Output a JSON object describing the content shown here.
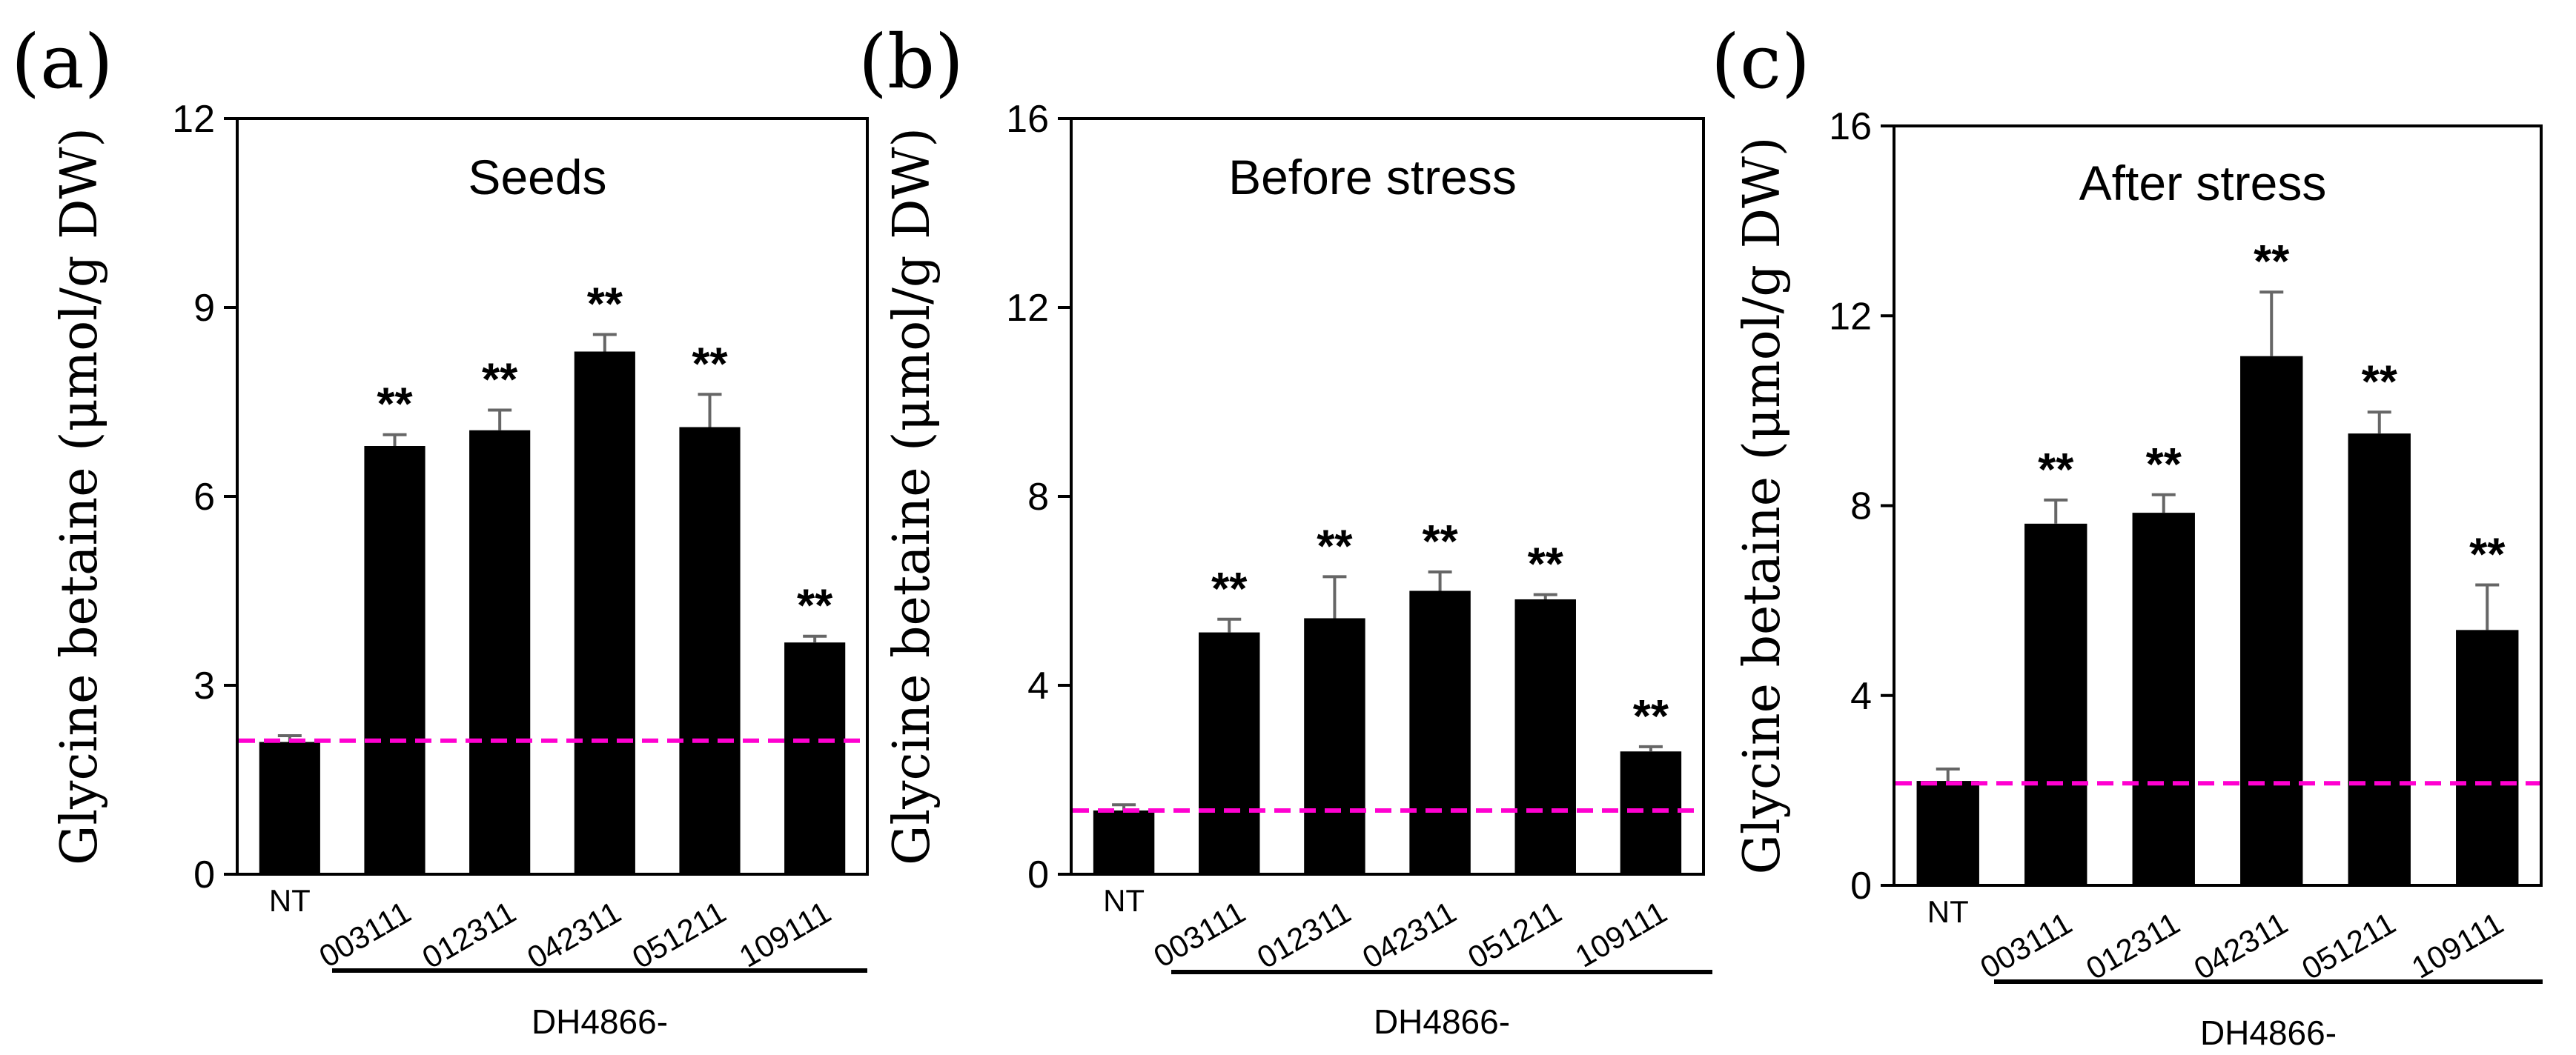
{
  "chart_data": [
    {
      "type": "bar",
      "panel_label": "(a)",
      "title": "Seeds",
      "ylabel": "Glycine betaine (μmol/g DW)",
      "ylim": [
        0,
        12
      ],
      "yticks": [
        "0",
        "3",
        "6",
        "9",
        "12"
      ],
      "categories": [
        "NT",
        "003111",
        "012311",
        "042311",
        "051211",
        "109111"
      ],
      "values": [
        2.1,
        6.8,
        7.05,
        8.3,
        7.1,
        3.68
      ],
      "errors": [
        0.1,
        0.18,
        0.32,
        0.27,
        0.52,
        0.1
      ],
      "significance": [
        "",
        "**",
        "**",
        "**",
        "**",
        "**"
      ],
      "reference_line": 2.12,
      "group_label": "DH4866-"
    },
    {
      "type": "bar",
      "panel_label": "(b)",
      "title": "Before stress",
      "ylabel": "Glycine betaine (μmol/g DW)",
      "ylim": [
        0,
        16
      ],
      "yticks": [
        "0",
        "4",
        "8",
        "12",
        "16"
      ],
      "categories": [
        "NT",
        "003111",
        "012311",
        "042311",
        "051211",
        "109111"
      ],
      "values": [
        1.35,
        5.12,
        5.42,
        6.0,
        5.82,
        2.6
      ],
      "errors": [
        0.12,
        0.28,
        0.88,
        0.4,
        0.1,
        0.1
      ],
      "significance": [
        "",
        "**",
        "**",
        "**",
        "**",
        "**"
      ],
      "reference_line": 1.35,
      "group_label": "DH4866-"
    },
    {
      "type": "bar",
      "panel_label": "(c)",
      "title": "After stress",
      "ylabel": "Glycine betaine (μmol/g DW)",
      "ylim": [
        0,
        16
      ],
      "yticks": [
        "0",
        "4",
        "8",
        "12",
        "16"
      ],
      "categories": [
        "NT",
        "003111",
        "012311",
        "042311",
        "051211",
        "109111"
      ],
      "values": [
        2.2,
        7.62,
        7.85,
        11.15,
        9.52,
        5.38
      ],
      "errors": [
        0.25,
        0.5,
        0.38,
        1.35,
        0.45,
        0.95
      ],
      "significance": [
        "",
        "**",
        "**",
        "**",
        "**",
        "**"
      ],
      "reference_line": 2.15,
      "group_label": "DH4866-"
    }
  ],
  "colors": {
    "bar": "#000000",
    "error_bar": "#666666",
    "reference_line": "#ff00d0",
    "axis": "#000000"
  }
}
